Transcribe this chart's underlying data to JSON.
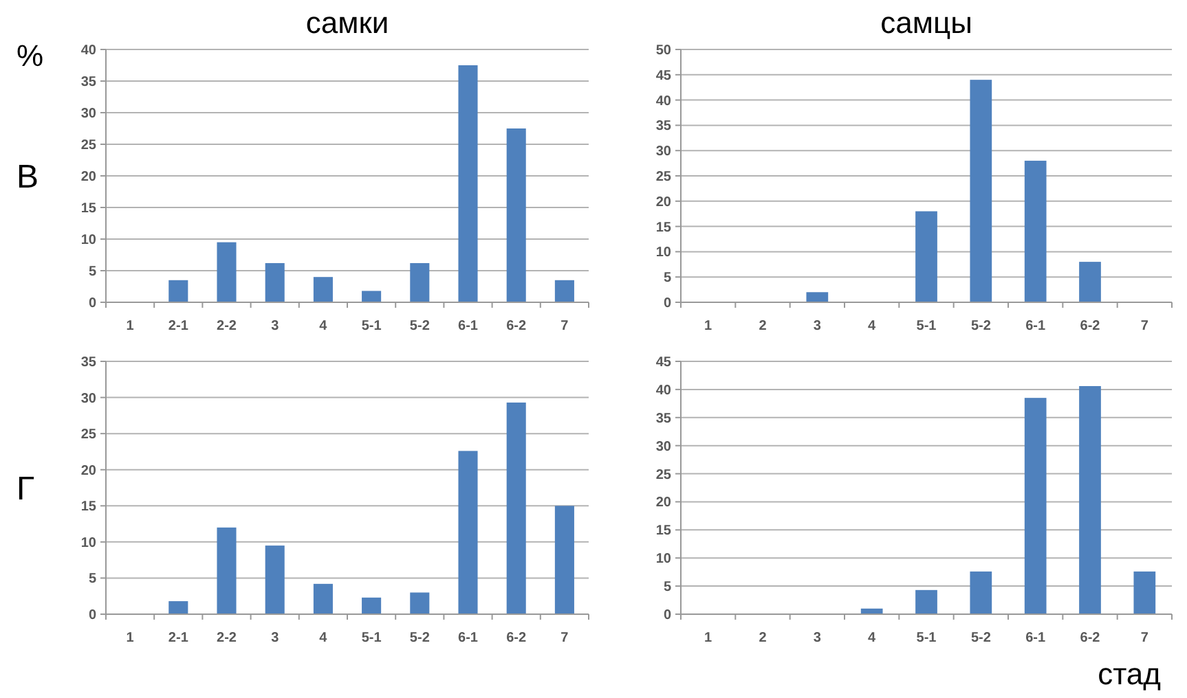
{
  "chart_data": [
    {
      "type": "bar",
      "title": "самки",
      "ylabel": "%",
      "annotations": [
        "В"
      ],
      "categories": [
        "1",
        "2-1",
        "2-2",
        "3",
        "4",
        "5-1",
        "5-2",
        "6-1",
        "6-2",
        "7"
      ],
      "values": [
        0,
        3.5,
        9.5,
        6.2,
        4,
        1.8,
        6.2,
        37.5,
        27.5,
        3.5
      ],
      "color": "#4f81bd",
      "ylim": [
        0,
        40
      ],
      "yticks": [
        0,
        5,
        10,
        15,
        20,
        25,
        30,
        35,
        40
      ],
      "grid": "y"
    },
    {
      "type": "bar",
      "title": "самцы",
      "categories": [
        "1",
        "2",
        "3",
        "4",
        "5-1",
        "5-2",
        "6-1",
        "6-2",
        "7"
      ],
      "values": [
        0,
        0,
        2,
        0,
        18,
        44,
        28,
        8,
        0
      ],
      "color": "#4f81bd",
      "ylim": [
        0,
        50
      ],
      "yticks": [
        0,
        5,
        10,
        15,
        20,
        25,
        30,
        35,
        40,
        45,
        50
      ],
      "grid": "y"
    },
    {
      "type": "bar",
      "annotations": [
        "Г"
      ],
      "categories": [
        "1",
        "2-1",
        "2-2",
        "3",
        "4",
        "5-1",
        "5-2",
        "6-1",
        "6-2",
        "7"
      ],
      "values": [
        0,
        1.8,
        12,
        9.5,
        4.2,
        2.3,
        3,
        22.6,
        29.3,
        15
      ],
      "color": "#4f81bd",
      "ylim": [
        0,
        35
      ],
      "yticks": [
        0,
        5,
        10,
        15,
        20,
        25,
        30,
        35
      ],
      "grid": "y"
    },
    {
      "type": "bar",
      "xlabel": "стад",
      "categories": [
        "1",
        "2",
        "3",
        "4",
        "5-1",
        "5-2",
        "6-1",
        "6-2",
        "7"
      ],
      "values": [
        0,
        0,
        0,
        1,
        4.3,
        7.6,
        38.5,
        40.6,
        7.6
      ],
      "color": "#4f81bd",
      "ylim": [
        0,
        45
      ],
      "yticks": [
        0,
        5,
        10,
        15,
        20,
        25,
        30,
        35,
        40,
        45
      ],
      "grid": "y"
    }
  ]
}
